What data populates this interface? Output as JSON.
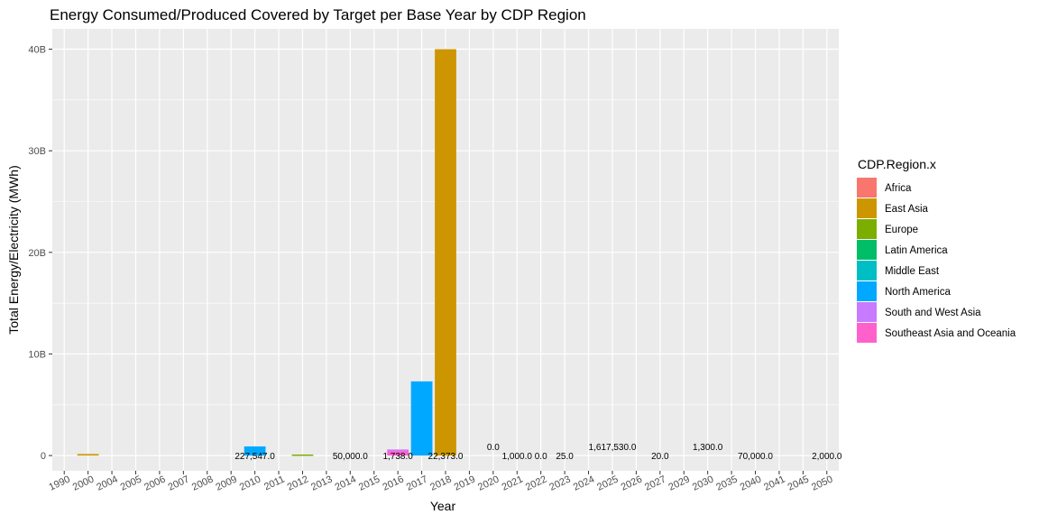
{
  "chart_data": {
    "type": "bar",
    "title": "Energy Consumed/Produced Covered by Target per Base Year by CDP Region",
    "xlabel": "Year",
    "ylabel": "Total Energy/Electricity (MWh)",
    "categories": [
      "1990",
      "2000",
      "2004",
      "2005",
      "2006",
      "2007",
      "2008",
      "2009",
      "2010",
      "2011",
      "2012",
      "2013",
      "2014",
      "2015",
      "2016",
      "2017",
      "2018",
      "2019",
      "2020",
      "2021",
      "2022",
      "2023",
      "2024",
      "2025",
      "2026",
      "2027",
      "2029",
      "2030",
      "2035",
      "2040",
      "2041",
      "2045",
      "2050"
    ],
    "y_ticks": [
      0,
      10000000000,
      20000000000,
      30000000000,
      40000000000
    ],
    "y_tick_labels": [
      "0",
      "10B",
      "20B",
      "30B",
      "40B"
    ],
    "ylim": [
      -1500000000,
      42000000000
    ],
    "grid": true,
    "legend": {
      "title": "CDP.Region.x",
      "placement": "right",
      "entries": [
        {
          "name": "Africa",
          "color": "#F8766D"
        },
        {
          "name": "East Asia",
          "color": "#CD9600"
        },
        {
          "name": "Europe",
          "color": "#7CAE00"
        },
        {
          "name": "Latin America",
          "color": "#00BE67"
        },
        {
          "name": "Middle East",
          "color": "#00BFC4"
        },
        {
          "name": "North America",
          "color": "#00A9FF"
        },
        {
          "name": "South and West Asia",
          "color": "#C77CFF"
        },
        {
          "name": "Southeast Asia and Oceania",
          "color": "#FF61CC"
        }
      ]
    },
    "bars": [
      {
        "category": "2000",
        "region": "East Asia",
        "value": 150000000
      },
      {
        "category": "2010",
        "region": "North America",
        "value": 900000000
      },
      {
        "category": "2012",
        "region": "Europe",
        "value": 100000000
      },
      {
        "category": "2016",
        "region": "Southeast Asia and Oceania",
        "value": 450000000
      },
      {
        "category": "2016",
        "region": "South and West Asia",
        "value": 150000000
      },
      {
        "category": "2017",
        "region": "North America",
        "value": 7300000000
      },
      {
        "category": "2018",
        "region": "East Asia",
        "value": 40000000000
      }
    ],
    "data_labels": [
      {
        "category": "2010",
        "text": "227,547.0",
        "offset": 0
      },
      {
        "category": "2014",
        "text": "50,000.0",
        "offset": 0
      },
      {
        "category": "2016",
        "text": "1,738.0",
        "offset": 0
      },
      {
        "category": "2018",
        "text": "22,373.0",
        "offset": 0
      },
      {
        "category": "2020",
        "text": "0.0",
        "offset": 1
      },
      {
        "category": "2021",
        "text": "1,000.0",
        "offset": 0
      },
      {
        "category": "2022",
        "text": "0.0",
        "offset": 0
      },
      {
        "category": "2023",
        "text": "25.0",
        "offset": 0
      },
      {
        "category": "2025",
        "text": "1,617,530.0",
        "offset": 1
      },
      {
        "category": "2027",
        "text": "20.0",
        "offset": 0
      },
      {
        "category": "2030",
        "text": "1,300.0",
        "offset": 1
      },
      {
        "category": "2040",
        "text": "70,000.0",
        "offset": 0
      },
      {
        "category": "2050",
        "text": "2,000.0",
        "offset": 0
      }
    ]
  }
}
